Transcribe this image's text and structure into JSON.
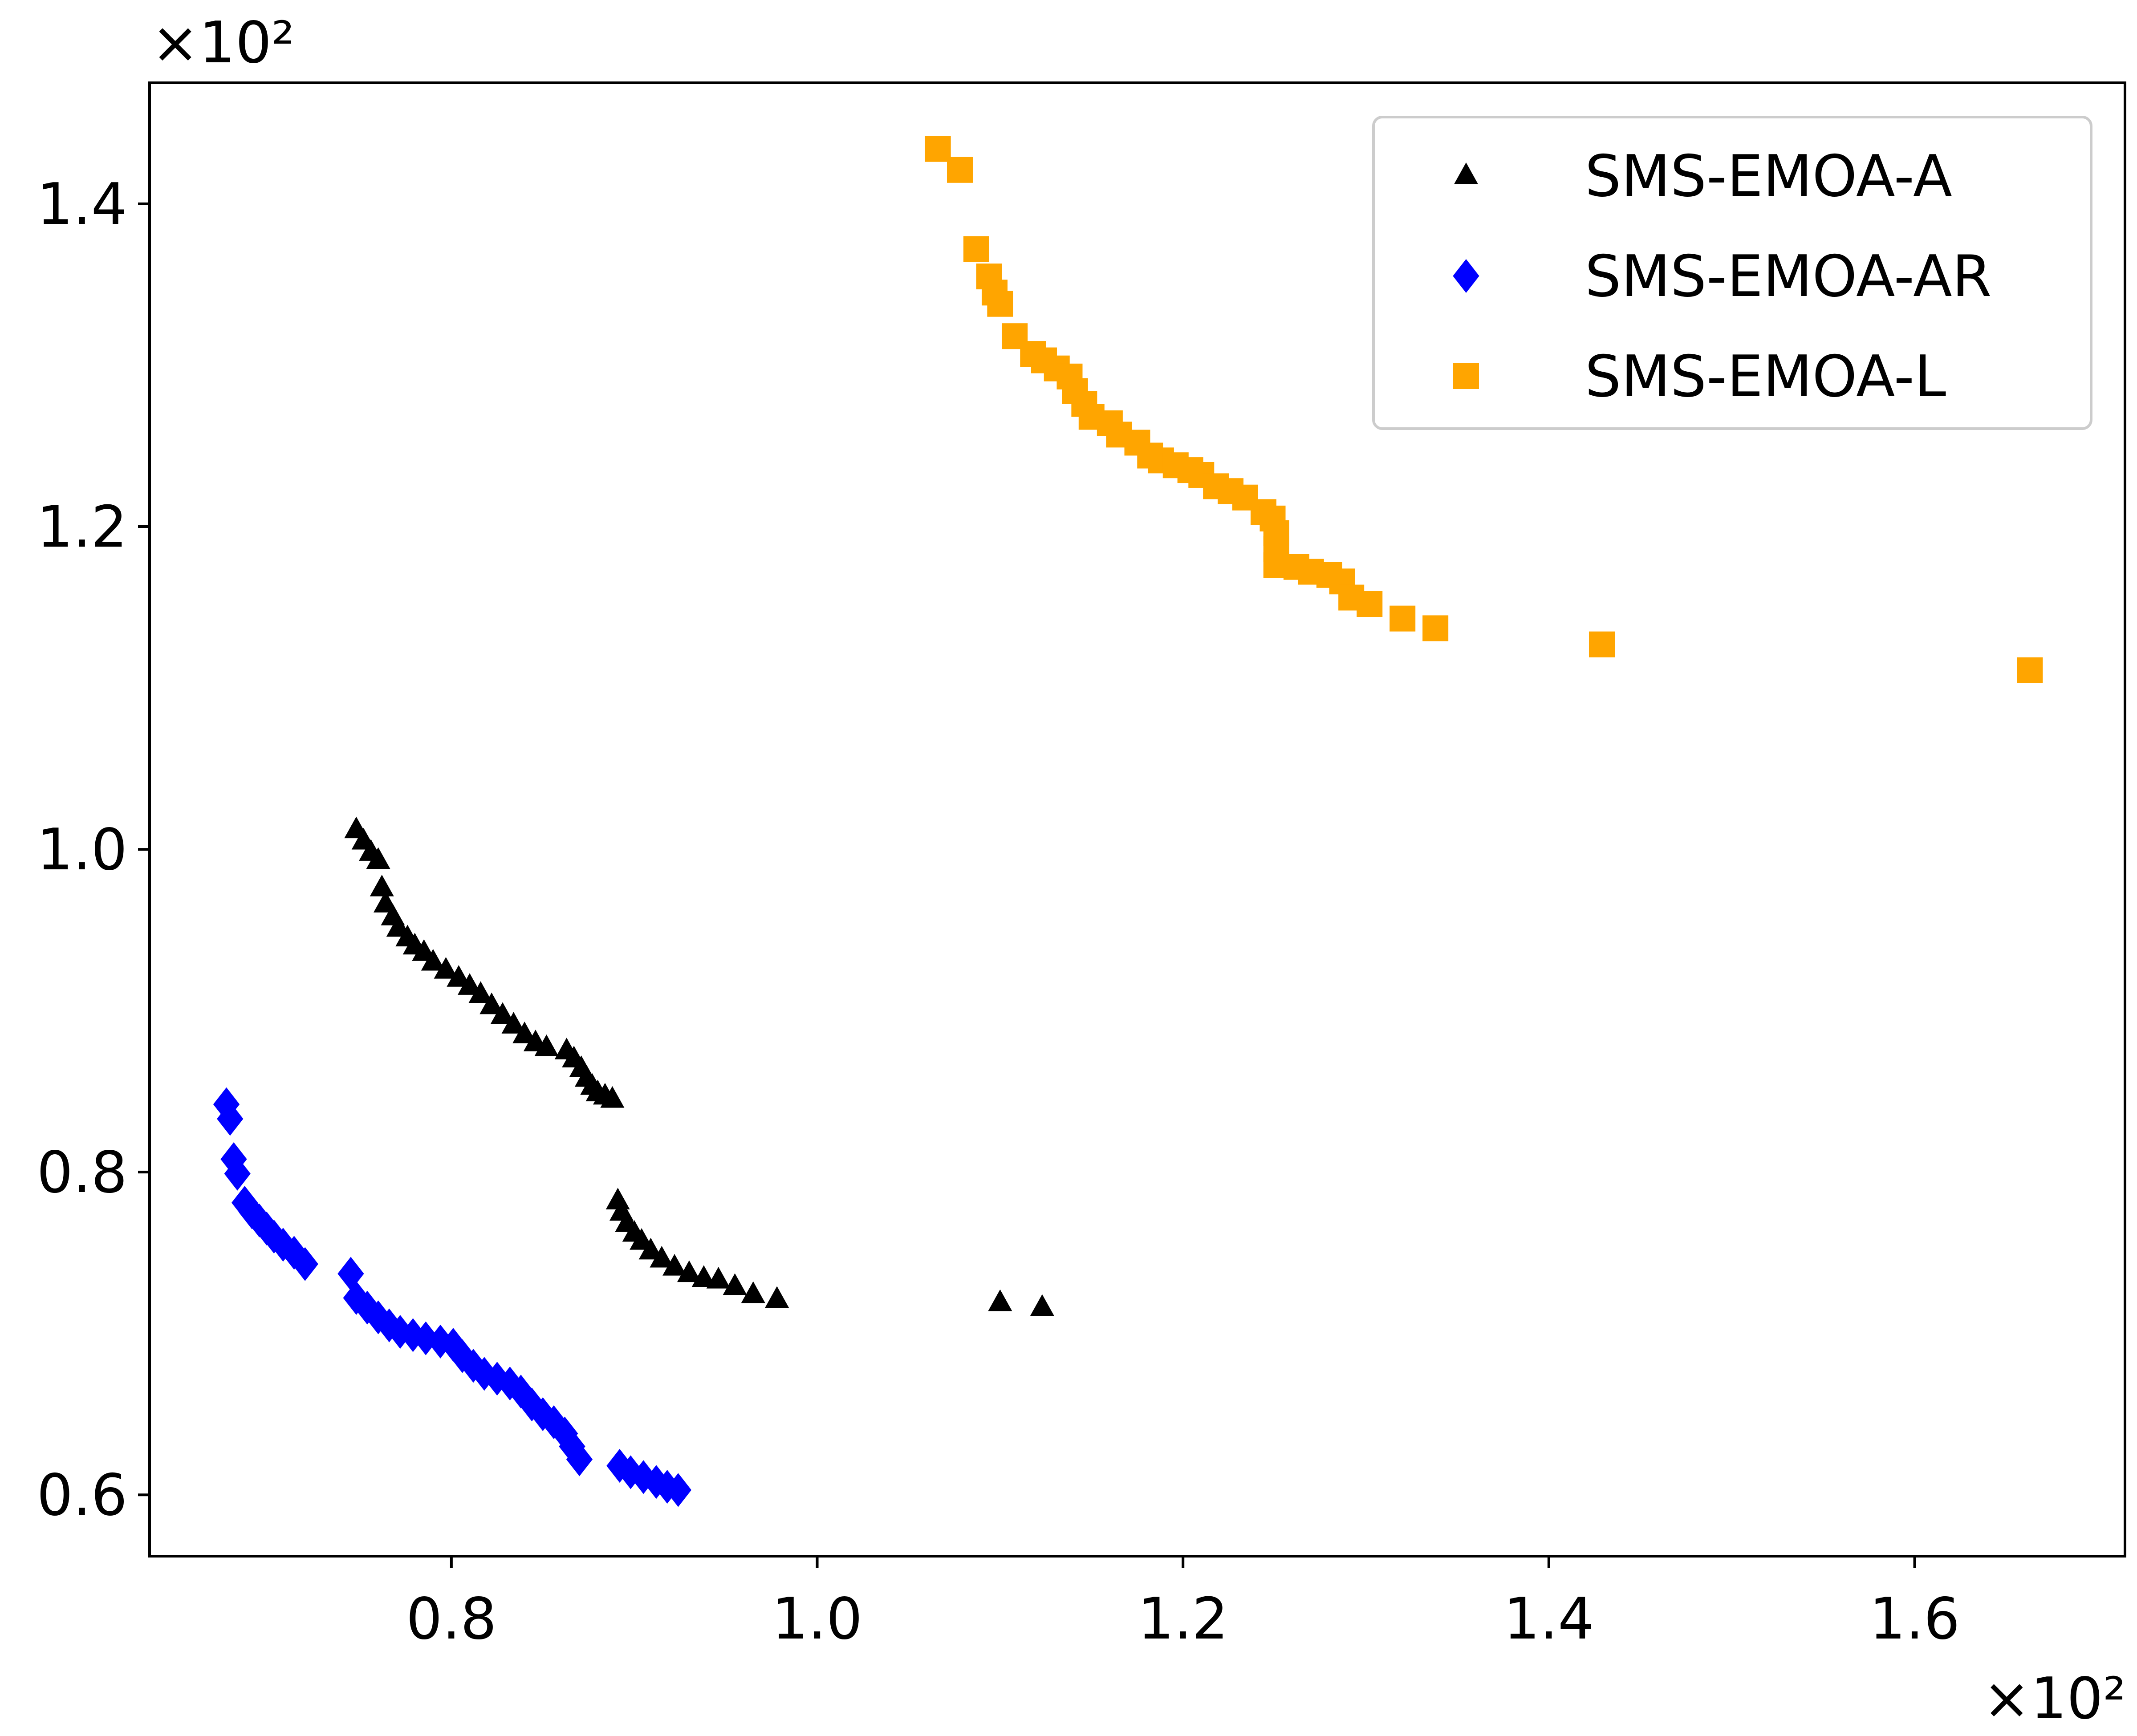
{
  "chart_data": {
    "type": "scatter",
    "title": "",
    "xlabel": "",
    "ylabel": "",
    "x_multiplier_label": "×10²",
    "y_multiplier_label": "×10²",
    "xlim": [
      0.635,
      1.715
    ],
    "ylim": [
      0.562,
      1.475
    ],
    "x_ticks": [
      0.8,
      1.0,
      1.2,
      1.4,
      1.6
    ],
    "x_tick_labels": [
      "0.8",
      "1.0",
      "1.2",
      "1.4",
      "1.6"
    ],
    "y_ticks": [
      0.6,
      0.8,
      1.0,
      1.2,
      1.4
    ],
    "y_tick_labels": [
      "0.6",
      "0.8",
      "1.0",
      "1.2",
      "1.4"
    ],
    "grid": false,
    "legend_position": "top-right",
    "series": [
      {
        "name": "SMS-EMOA-A",
        "marker": "triangle",
        "color": "#000000",
        "points": [
          [
            0.748,
            1.012
          ],
          [
            0.752,
            1.005
          ],
          [
            0.756,
            0.998
          ],
          [
            0.76,
            0.993
          ],
          [
            0.762,
            0.976
          ],
          [
            0.764,
            0.966
          ],
          [
            0.768,
            0.958
          ],
          [
            0.771,
            0.951
          ],
          [
            0.776,
            0.945
          ],
          [
            0.78,
            0.94
          ],
          [
            0.785,
            0.936
          ],
          [
            0.79,
            0.93
          ],
          [
            0.797,
            0.925
          ],
          [
            0.804,
            0.92
          ],
          [
            0.81,
            0.915
          ],
          [
            0.816,
            0.91
          ],
          [
            0.822,
            0.903
          ],
          [
            0.828,
            0.897
          ],
          [
            0.834,
            0.891
          ],
          [
            0.84,
            0.885
          ],
          [
            0.846,
            0.88
          ],
          [
            0.852,
            0.877
          ],
          [
            0.863,
            0.875
          ],
          [
            0.867,
            0.87
          ],
          [
            0.871,
            0.864
          ],
          [
            0.874,
            0.858
          ],
          [
            0.877,
            0.853
          ],
          [
            0.88,
            0.849
          ],
          [
            0.884,
            0.847
          ],
          [
            0.888,
            0.845
          ],
          [
            0.891,
            0.782
          ],
          [
            0.893,
            0.775
          ],
          [
            0.896,
            0.768
          ],
          [
            0.9,
            0.762
          ],
          [
            0.904,
            0.757
          ],
          [
            0.909,
            0.751
          ],
          [
            0.915,
            0.746
          ],
          [
            0.922,
            0.741
          ],
          [
            0.93,
            0.737
          ],
          [
            0.938,
            0.734
          ],
          [
            0.946,
            0.733
          ],
          [
            0.955,
            0.729
          ],
          [
            0.965,
            0.724
          ],
          [
            0.978,
            0.721
          ],
          [
            1.1,
            0.719
          ],
          [
            1.123,
            0.716
          ]
        ]
      },
      {
        "name": "SMS-EMOA-AR",
        "marker": "diamond",
        "color": "#0000ff",
        "points": [
          [
            0.677,
            0.842
          ],
          [
            0.679,
            0.833
          ],
          [
            0.681,
            0.808
          ],
          [
            0.683,
            0.799
          ],
          [
            0.687,
            0.781
          ],
          [
            0.691,
            0.775
          ],
          [
            0.695,
            0.77
          ],
          [
            0.699,
            0.765
          ],
          [
            0.703,
            0.76
          ],
          [
            0.708,
            0.755
          ],
          [
            0.714,
            0.75
          ],
          [
            0.72,
            0.743
          ],
          [
            0.745,
            0.737
          ],
          [
            0.748,
            0.722
          ],
          [
            0.754,
            0.716
          ],
          [
            0.76,
            0.71
          ],
          [
            0.766,
            0.705
          ],
          [
            0.772,
            0.701
          ],
          [
            0.779,
            0.699
          ],
          [
            0.786,
            0.697
          ],
          [
            0.794,
            0.695
          ],
          [
            0.801,
            0.693
          ],
          [
            0.806,
            0.686
          ],
          [
            0.812,
            0.68
          ],
          [
            0.818,
            0.675
          ],
          [
            0.825,
            0.672
          ],
          [
            0.832,
            0.669
          ],
          [
            0.838,
            0.664
          ],
          [
            0.844,
            0.656
          ],
          [
            0.85,
            0.65
          ],
          [
            0.856,
            0.645
          ],
          [
            0.862,
            0.638
          ],
          [
            0.866,
            0.63
          ],
          [
            0.87,
            0.622
          ],
          [
            0.892,
            0.618
          ],
          [
            0.898,
            0.614
          ],
          [
            0.905,
            0.611
          ],
          [
            0.912,
            0.608
          ],
          [
            0.918,
            0.605
          ],
          [
            0.924,
            0.603
          ]
        ]
      },
      {
        "name": "SMS-EMOA-L",
        "marker": "square",
        "color": "#ffa500",
        "points": [
          [
            1.066,
            1.434
          ],
          [
            1.078,
            1.421
          ],
          [
            1.087,
            1.372
          ],
          [
            1.094,
            1.355
          ],
          [
            1.097,
            1.345
          ],
          [
            1.1,
            1.338
          ],
          [
            1.108,
            1.318
          ],
          [
            1.118,
            1.307
          ],
          [
            1.124,
            1.303
          ],
          [
            1.131,
            1.298
          ],
          [
            1.138,
            1.293
          ],
          [
            1.141,
            1.284
          ],
          [
            1.146,
            1.276
          ],
          [
            1.15,
            1.268
          ],
          [
            1.16,
            1.264
          ],
          [
            1.165,
            1.257
          ],
          [
            1.175,
            1.252
          ],
          [
            1.182,
            1.244
          ],
          [
            1.188,
            1.241
          ],
          [
            1.196,
            1.238
          ],
          [
            1.204,
            1.235
          ],
          [
            1.21,
            1.232
          ],
          [
            1.218,
            1.225
          ],
          [
            1.226,
            1.222
          ],
          [
            1.234,
            1.218
          ],
          [
            1.244,
            1.209
          ],
          [
            1.249,
            1.205
          ],
          [
            1.251,
            1.196
          ],
          [
            1.251,
            1.186
          ],
          [
            1.251,
            1.176
          ],
          [
            1.262,
            1.175
          ],
          [
            1.27,
            1.172
          ],
          [
            1.28,
            1.17
          ],
          [
            1.287,
            1.166
          ],
          [
            1.292,
            1.156
          ],
          [
            1.302,
            1.152
          ],
          [
            1.32,
            1.143
          ],
          [
            1.338,
            1.137
          ],
          [
            1.429,
            1.127
          ],
          [
            1.663,
            1.111
          ]
        ]
      }
    ]
  }
}
